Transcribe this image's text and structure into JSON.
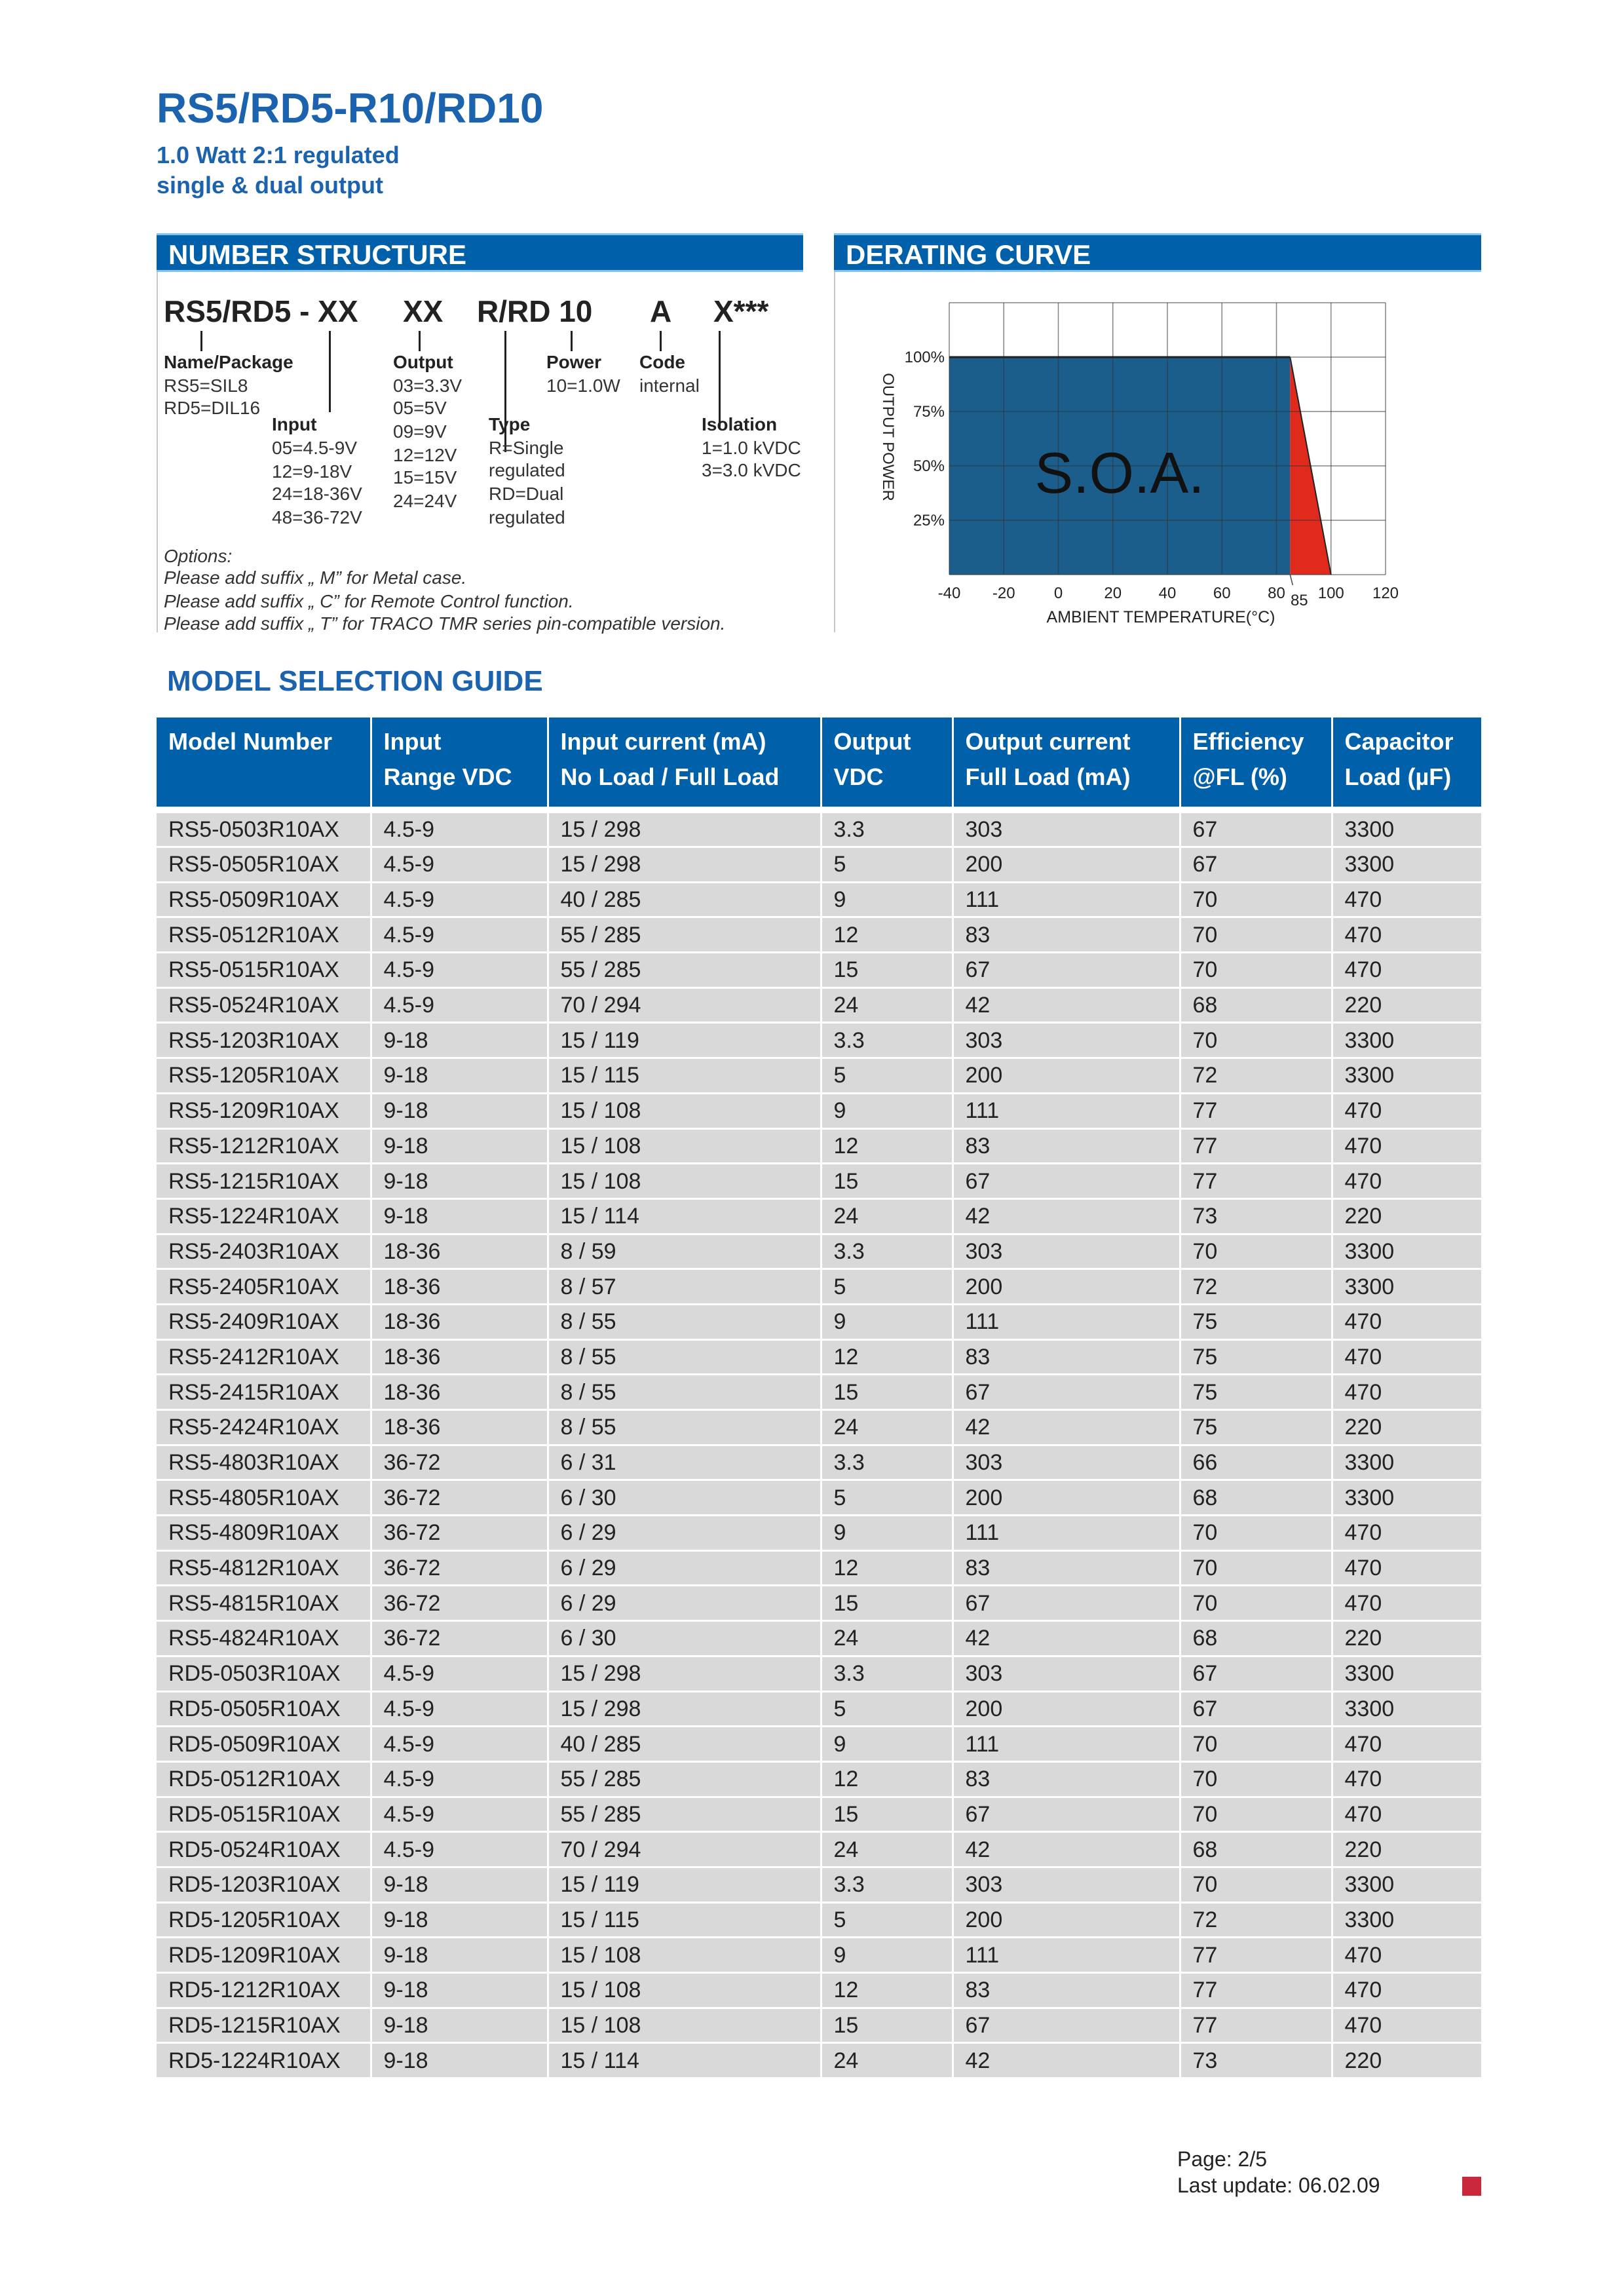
{
  "header": {
    "title": "RS5/RD5-R10/RD10",
    "subtitle_line1": "1.0 Watt 2:1 regulated",
    "subtitle_line2": "single & dual output"
  },
  "number_structure": {
    "heading": "NUMBER STRUCTURE",
    "code_parts": [
      "RS5/RD5 - XX",
      "XX",
      "R/RD 10",
      "A",
      "X***"
    ],
    "name_package": {
      "label": "Name/Package",
      "values": [
        "RS5=SIL8",
        "RD5=DIL16"
      ]
    },
    "input": {
      "label": "Input",
      "values": [
        "05=4.5-9V",
        "12=9-18V",
        "24=18-36V",
        "48=36-72V"
      ]
    },
    "output": {
      "label": "Output",
      "values": [
        "03=3.3V",
        "05=5V",
        "09=9V",
        "12=12V",
        "15=15V",
        "24=24V"
      ]
    },
    "type": {
      "label": "Type",
      "values": [
        "R=Single",
        "regulated",
        "RD=Dual",
        "regulated"
      ]
    },
    "power": {
      "label": "Power",
      "values": [
        "10=1.0W"
      ]
    },
    "code": {
      "label": "Code",
      "values": [
        "internal"
      ]
    },
    "isolation": {
      "label": "Isolation",
      "values": [
        "1=1.0 kVDC",
        "3=3.0 kVDC"
      ]
    },
    "options": [
      "Options:",
      "Please add suffix „ M” for Metal case.",
      "Please add suffix „ C” for Remote Control function.",
      "Please add suffix „ T” for TRACO TMR series pin-compatible version."
    ]
  },
  "derating": {
    "heading": "DERATING CURVE",
    "chart_data": {
      "type": "area",
      "xlabel": "AMBIENT TEMPERATURE(°C)",
      "ylabel": "OUTPUT POWER",
      "xlim": [
        -40,
        120
      ],
      "ylim": [
        0,
        125
      ],
      "xticks": [
        "-40",
        "-20",
        "0",
        "20",
        "40",
        "60",
        "80",
        "100",
        "120"
      ],
      "xtick_values": [
        -40,
        -20,
        0,
        20,
        40,
        60,
        80,
        100,
        120
      ],
      "extra_xtick": "85",
      "yticks": [
        "25%",
        "50%",
        "75%",
        "100%"
      ],
      "ytick_values": [
        25,
        50,
        75,
        100
      ],
      "grid": true,
      "soa_region": {
        "x": [
          -40,
          85
        ],
        "y": [
          100,
          100
        ],
        "label": "S.O.A.",
        "color": "#1b5e8c"
      },
      "derating_region": {
        "x": [
          85,
          100
        ],
        "y": [
          100,
          0
        ],
        "color": "#e02a1b"
      }
    }
  },
  "model_guide": {
    "heading": "MODEL SELECTION GUIDE",
    "columns": [
      [
        "Model Number",
        ""
      ],
      [
        "Input",
        "Range VDC"
      ],
      [
        "Input current (mA)",
        "No Load / Full Load"
      ],
      [
        "Output",
        "VDC"
      ],
      [
        "Output current",
        "Full Load (mA)"
      ],
      [
        "Efficiency",
        "@FL (%)"
      ],
      [
        "Capacitor",
        "Load (µF)"
      ]
    ],
    "rows": [
      [
        "RS5-0503R10AX",
        "4.5-9",
        "15 / 298",
        "3.3",
        "303",
        "67",
        "3300"
      ],
      [
        "RS5-0505R10AX",
        "4.5-9",
        "15 / 298",
        "5",
        "200",
        "67",
        "3300"
      ],
      [
        "RS5-0509R10AX",
        "4.5-9",
        "40 / 285",
        "9",
        "111",
        "70",
        "470"
      ],
      [
        "RS5-0512R10AX",
        "4.5-9",
        "55 / 285",
        "12",
        "83",
        "70",
        "470"
      ],
      [
        "RS5-0515R10AX",
        "4.5-9",
        "55 / 285",
        "15",
        "67",
        "70",
        "470"
      ],
      [
        "RS5-0524R10AX",
        "4.5-9",
        "70 / 294",
        "24",
        "42",
        "68",
        "220"
      ],
      [
        "RS5-1203R10AX",
        "9-18",
        "15 / 119",
        "3.3",
        "303",
        "70",
        "3300"
      ],
      [
        "RS5-1205R10AX",
        "9-18",
        "15 / 115",
        "5",
        "200",
        "72",
        "3300"
      ],
      [
        "RS5-1209R10AX",
        "9-18",
        "15 / 108",
        "9",
        "111",
        "77",
        "470"
      ],
      [
        "RS5-1212R10AX",
        "9-18",
        "15 / 108",
        "12",
        "83",
        "77",
        "470"
      ],
      [
        "RS5-1215R10AX",
        "9-18",
        "15 / 108",
        "15",
        "67",
        "77",
        "470"
      ],
      [
        "RS5-1224R10AX",
        "9-18",
        "15 / 114",
        "24",
        "42",
        "73",
        "220"
      ],
      [
        "RS5-2403R10AX",
        "18-36",
        "8 / 59",
        "3.3",
        "303",
        "70",
        "3300"
      ],
      [
        "RS5-2405R10AX",
        "18-36",
        "8 / 57",
        "5",
        "200",
        "72",
        "3300"
      ],
      [
        "RS5-2409R10AX",
        "18-36",
        "8 / 55",
        "9",
        "111",
        "75",
        "470"
      ],
      [
        "RS5-2412R10AX",
        "18-36",
        "8 / 55",
        "12",
        "83",
        "75",
        "470"
      ],
      [
        "RS5-2415R10AX",
        "18-36",
        "8 / 55",
        "15",
        "67",
        "75",
        "470"
      ],
      [
        "RS5-2424R10AX",
        "18-36",
        "8 / 55",
        "24",
        "42",
        "75",
        "220"
      ],
      [
        "RS5-4803R10AX",
        "36-72",
        "6 / 31",
        "3.3",
        "303",
        "66",
        "3300"
      ],
      [
        "RS5-4805R10AX",
        "36-72",
        "6 / 30",
        "5",
        "200",
        "68",
        "3300"
      ],
      [
        "RS5-4809R10AX",
        "36-72",
        "6 / 29",
        "9",
        "111",
        "70",
        "470"
      ],
      [
        "RS5-4812R10AX",
        "36-72",
        "6 / 29",
        "12",
        "83",
        "70",
        "470"
      ],
      [
        "RS5-4815R10AX",
        "36-72",
        "6 / 29",
        "15",
        "67",
        "70",
        "470"
      ],
      [
        "RS5-4824R10AX",
        "36-72",
        "6 / 30",
        "24",
        "42",
        "68",
        "220"
      ],
      [
        "RD5-0503R10AX",
        "4.5-9",
        "15 / 298",
        "3.3",
        "303",
        "67",
        "3300"
      ],
      [
        "RD5-0505R10AX",
        "4.5-9",
        "15 / 298",
        "5",
        "200",
        "67",
        "3300"
      ],
      [
        "RD5-0509R10AX",
        "4.5-9",
        "40 / 285",
        "9",
        "111",
        "70",
        "470"
      ],
      [
        "RD5-0512R10AX",
        "4.5-9",
        "55 / 285",
        "12",
        "83",
        "70",
        "470"
      ],
      [
        "RD5-0515R10AX",
        "4.5-9",
        "55 / 285",
        "15",
        "67",
        "70",
        "470"
      ],
      [
        "RD5-0524R10AX",
        "4.5-9",
        "70 / 294",
        "24",
        "42",
        "68",
        "220"
      ],
      [
        "RD5-1203R10AX",
        "9-18",
        "15 / 119",
        "3.3",
        "303",
        "70",
        "3300"
      ],
      [
        "RD5-1205R10AX",
        "9-18",
        "15 / 115",
        "5",
        "200",
        "72",
        "3300"
      ],
      [
        "RD5-1209R10AX",
        "9-18",
        "15 / 108",
        "9",
        "111",
        "77",
        "470"
      ],
      [
        "RD5-1212R10AX",
        "9-18",
        "15 / 108",
        "12",
        "83",
        "77",
        "470"
      ],
      [
        "RD5-1215R10AX",
        "9-18",
        "15 / 108",
        "15",
        "67",
        "77",
        "470"
      ],
      [
        "RD5-1224R10AX",
        "9-18",
        "15 / 114",
        "24",
        "42",
        "73",
        "220"
      ]
    ]
  },
  "footer": {
    "page": "Page: 2/5",
    "last_update": "Last update: 06.02.09",
    "marker_color": "#c8283a"
  },
  "colors": {
    "accent": "#0061aa",
    "title": "#1b63ae"
  }
}
